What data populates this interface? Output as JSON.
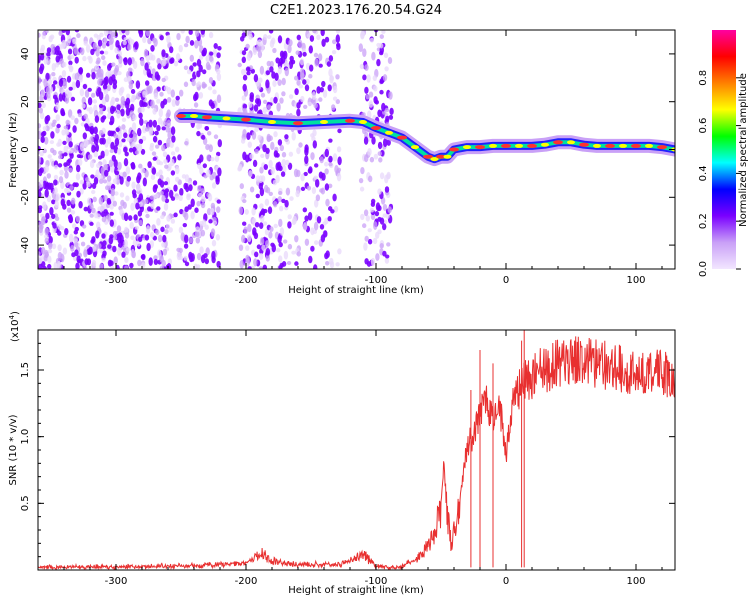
{
  "title": "C2E1.2023.176.20.54.G24",
  "chart_data": [
    {
      "type": "heatmap",
      "xlabel": "Height of straight line (km)",
      "ylabel": "Frequency (Hz)",
      "xlim": [
        -360,
        130
      ],
      "ylim": [
        -50,
        50
      ],
      "xticks": [
        -300,
        -200,
        -100,
        0,
        100
      ],
      "yticks": [
        -40,
        -20,
        0,
        20,
        40
      ],
      "colorbar": {
        "label": "Normalized spectral amplitude",
        "range": [
          0,
          1
        ],
        "ticks": [
          "0.0",
          "0.2",
          "0.4",
          "0.6",
          "0.8"
        ],
        "colors": [
          "#f2e6ff",
          "#c9a0f7",
          "#7a00ff",
          "#0000ff",
          "#00ffff",
          "#00ff00",
          "#ffff00",
          "#ff8000",
          "#ff0000",
          "#ff00a0"
        ]
      },
      "ridge": {
        "x": [
          -250,
          -240,
          -230,
          -215,
          -200,
          -180,
          -160,
          -140,
          -120,
          -110,
          -100,
          -90,
          -80,
          -70,
          -60,
          -55,
          -50,
          -45,
          -40,
          -30,
          -20,
          -10,
          0,
          10,
          20,
          30,
          40,
          50,
          60,
          70,
          80,
          90,
          100,
          110,
          120,
          130
        ],
        "y": [
          14,
          14,
          13.5,
          13,
          12.5,
          11.5,
          11,
          11.5,
          12,
          11.5,
          9,
          7,
          5,
          1,
          -3,
          -4,
          -3,
          -3,
          0,
          1,
          1,
          1.5,
          1.5,
          1.5,
          1.5,
          2,
          3,
          3,
          2,
          1.5,
          1.5,
          1.5,
          1.5,
          1.5,
          1,
          0
        ]
      },
      "noise_region": [
        -360,
        -85
      ]
    },
    {
      "type": "line",
      "xlabel": "Height of straight line (km)",
      "ylabel": "SNR (10 * v/v)",
      "scale_label": "(x10",
      "scale_exp": "4",
      "scale_close": ")",
      "xlim": [
        -360,
        130
      ],
      "ylim": [
        0,
        18000
      ],
      "xticks": [
        -300,
        -200,
        -100,
        0,
        100
      ],
      "yticks": [
        5000,
        10000,
        15000
      ],
      "ytick_labels": [
        "0.5",
        "1.0",
        "1.5"
      ],
      "series": [
        {
          "color": "#e83030",
          "x": [
            -360,
            -300,
            -250,
            -200,
            -195,
            -188,
            -183,
            -170,
            -150,
            -130,
            -115,
            -110,
            -105,
            -100,
            -90,
            -80,
            -70,
            -65,
            -60,
            -55,
            -50,
            -48,
            -45,
            -42,
            -38,
            -35,
            -30,
            -25,
            -20,
            -15,
            -10,
            -5,
            0,
            5,
            10,
            15,
            20,
            30,
            40,
            50,
            60,
            70,
            80,
            90,
            100,
            110,
            120,
            130
          ],
          "y": [
            200,
            250,
            300,
            500,
            800,
            1400,
            800,
            500,
            400,
            400,
            900,
            1300,
            700,
            300,
            200,
            300,
            700,
            1200,
            1800,
            2500,
            5000,
            7800,
            4000,
            1800,
            3500,
            5500,
            9500,
            10000,
            12000,
            12500,
            11000,
            12500,
            9000,
            12500,
            13500,
            14000,
            14500,
            15000,
            15500,
            15500,
            15800,
            15500,
            15200,
            15000,
            15000,
            14800,
            14700,
            14600
          ],
          "spikes": [
            {
              "x": -20,
              "y": 16500
            },
            {
              "x": -10,
              "y": 15500
            },
            {
              "x": 14,
              "y": 18000
            },
            {
              "x": 12,
              "y": 17200
            },
            {
              "x": -27,
              "y": 13500
            }
          ]
        }
      ]
    }
  ]
}
